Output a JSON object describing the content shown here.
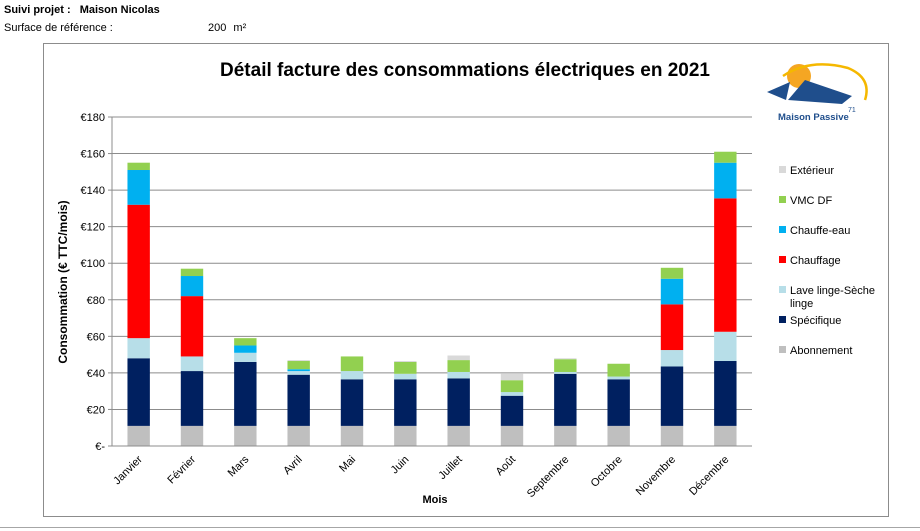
{
  "header": {
    "project_label": "Suivi projet :",
    "project_name": "Maison Nicolas",
    "surface_label": "Surface de référence :",
    "surface_value": "200",
    "surface_unit": "m²"
  },
  "logo": {
    "text": "Maison Passive",
    "number": "71"
  },
  "chart_data": {
    "type": "bar",
    "stacked": true,
    "title": "Détail facture des consommations électriques en 2021",
    "xlabel": "Mois",
    "ylabel": "Consommation (€ TTC/mois)",
    "ylim": [
      0,
      180
    ],
    "ytick_labels": [
      "€-",
      "€20",
      "€40",
      "€60",
      "€80",
      "€100",
      "€120",
      "€140",
      "€160",
      "€180"
    ],
    "categories": [
      "Janvier",
      "Février",
      "Mars",
      "Avril",
      "Mai",
      "Juin",
      "Juillet",
      "Août",
      "Septembre",
      "Octobre",
      "Novembre",
      "Décembre"
    ],
    "series": [
      {
        "name": "Abonnement",
        "color": "#bfbfbf",
        "values": [
          11,
          11,
          11,
          11,
          11,
          11,
          11,
          11,
          11,
          11,
          11,
          11
        ]
      },
      {
        "name": "Spécifique",
        "color": "#002060",
        "values": [
          37,
          30,
          35,
          28,
          25.5,
          25.5,
          26,
          16.5,
          28.5,
          25.5,
          32.5,
          35.5
        ]
      },
      {
        "name": "Lave linge-Sèche linge",
        "color": "#b7dee8",
        "values": [
          11,
          8,
          5,
          2,
          4.5,
          3,
          3.5,
          2,
          1,
          1.5,
          9,
          16
        ]
      },
      {
        "name": "Chauffage",
        "color": "#ff0000",
        "values": [
          73,
          33,
          0,
          0,
          0,
          0,
          0,
          0,
          0,
          0,
          25,
          73
        ]
      },
      {
        "name": "Chauffe-eau",
        "color": "#00b0f0",
        "values": [
          19,
          11,
          4,
          1,
          0,
          0,
          0,
          0,
          0,
          0,
          14,
          19.5
        ]
      },
      {
        "name": "VMC DF",
        "color": "#92d050",
        "values": [
          4,
          4,
          4,
          4.5,
          8,
          6.5,
          6.5,
          6.5,
          7,
          7,
          6,
          6
        ]
      },
      {
        "name": "Extérieur",
        "color": "#d9d9d9",
        "values": [
          0,
          0,
          0,
          0.5,
          0,
          0.5,
          2.5,
          3.5,
          0.5,
          0,
          0,
          0
        ]
      }
    ],
    "legend_position": "right",
    "grid": true
  }
}
